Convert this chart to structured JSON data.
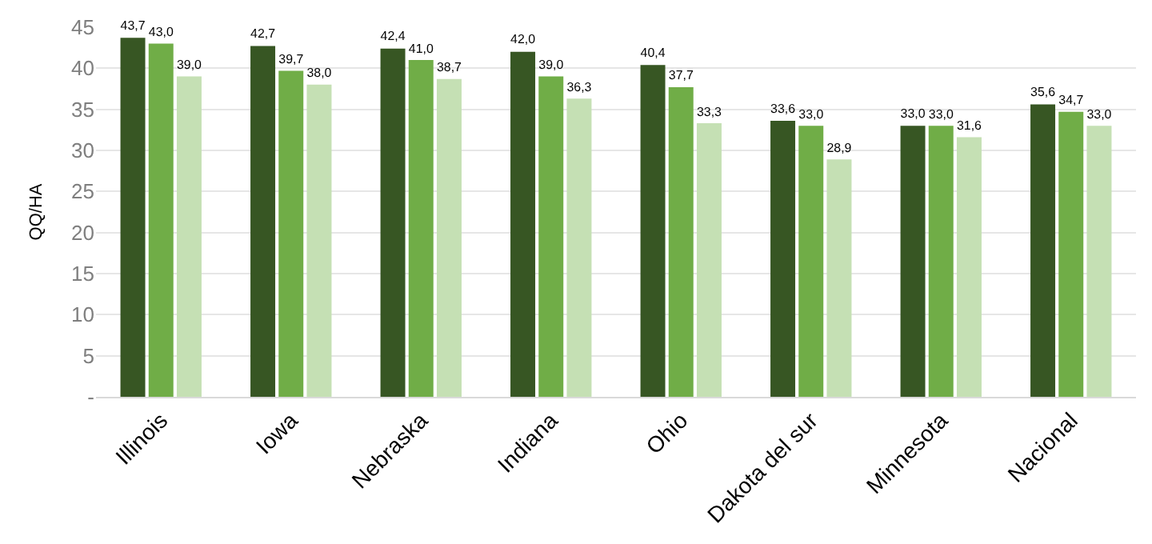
{
  "chart_data": {
    "type": "bar",
    "ylabel": "QQ/HA",
    "categories": [
      "Illinois",
      "Iowa",
      "Nebraska",
      "Indiana",
      "Ohio",
      "Dakota del sur",
      "Minnesota",
      "Nacional"
    ],
    "series": [
      {
        "color": "#375623",
        "values": [
          43.7,
          42.7,
          42.4,
          42.0,
          40.4,
          33.6,
          33.0,
          35.6
        ],
        "value_labels": [
          "43,7",
          "42,7",
          "42,4",
          "42,0",
          "40,4",
          "33,6",
          "33,0",
          "35,6"
        ]
      },
      {
        "color": "#70ad47",
        "values": [
          43.0,
          39.7,
          41.0,
          39.0,
          37.7,
          33.0,
          33.0,
          34.7
        ],
        "value_labels": [
          "43,0",
          "39,7",
          "41,0",
          "39,0",
          "37,7",
          "33,0",
          "33,0",
          "34,7"
        ]
      },
      {
        "color": "#c5e0b4",
        "values": [
          39.0,
          38.0,
          38.7,
          36.3,
          33.3,
          28.9,
          31.6,
          33.0
        ],
        "value_labels": [
          "39,0",
          "38,0",
          "38,7",
          "36,3",
          "33,3",
          "28,9",
          "31,6",
          "33,0"
        ]
      }
    ],
    "ylim": [
      0,
      45
    ],
    "yticks": [
      {
        "value": 0,
        "label": "-"
      },
      5,
      10,
      15,
      20,
      25,
      30,
      35,
      40,
      45
    ],
    "grid": "y"
  }
}
